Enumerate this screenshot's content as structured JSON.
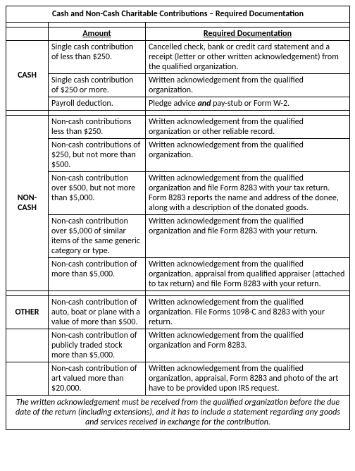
{
  "title": "Cash and Non-Cash Charitable Contributions – Required Documentation",
  "headers": {
    "cat": "",
    "amount": "Amount",
    "doc": "Required Documentation"
  },
  "cash": {
    "label": "CASH",
    "rows": [
      {
        "amount": "Single cash contribution of less than $250.",
        "doc": "Cancelled check, bank or credit card statement and a receipt (letter or other written acknowledgement) from the qualified organization."
      },
      {
        "amount": "Single cash contribution of $250 or more.",
        "doc": "Written acknowledgement from the qualified organization."
      },
      {
        "amount": "Payroll deduction.",
        "doc_pre": "Pledge advice ",
        "doc_em": "and",
        "doc_post": " pay-stub or Form W-2."
      }
    ]
  },
  "noncash": {
    "label": "NON-CASH",
    "rows": [
      {
        "amount": "Non-cash contributions less than $250.",
        "doc": "Written acknowledgement from the qualified organization or other reliable record."
      },
      {
        "amount": "Non-cash contributions of $250, but not more than $500.",
        "doc": "Written acknowledgement from the qualified organization."
      },
      {
        "amount": "Non-cash contribution over $500, but not more than $5,000.",
        "doc": "Written acknowledgement from the qualified organization and file Form 8283 with your tax return. Form 8283 reports the name and address of the donee, along with a description of the donated goods."
      },
      {
        "amount": "Non-cash contribution over $5,000 of similar items of the same generic category or type.",
        "doc": "Written acknowledgement from the qualified organization and file Form 8283 with your return."
      },
      {
        "amount": "Non-cash contribution of more than $5,000.",
        "doc": "Written acknowledgement from the qualified organization, appraisal from qualified appraiser (attached to tax return) and file Form 8283 with your return."
      }
    ]
  },
  "other": {
    "label": "OTHER",
    "rows": [
      {
        "amount": "Non-cash contribution of auto, boat or plane with a value of more than $500.",
        "doc": "Written acknowledgement from the qualified organization. File Forms 1098-C and 8283 with your return."
      },
      {
        "amount": "Non-cash contribution of publicly traded stock more than $5,000.",
        "doc": "Written acknowledgement from the qualified organization and Form 8283."
      },
      {
        "amount": "Non-cash contribution of art valued more than $20,000.",
        "doc": "Written acknowledgement from the qualified organization, appraisal, Form 8283 and photo of the art have to be provided upon IRS request."
      }
    ]
  },
  "footnote": "The written acknowledgement must be received from the qualified organization before the due date of the return (including extensions), and it has to include a statement regarding any goods and services received in exchange for the contribution."
}
